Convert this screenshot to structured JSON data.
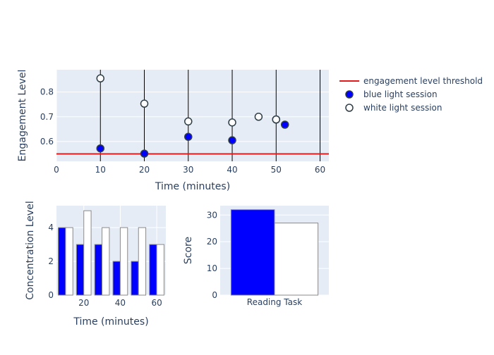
{
  "chart_data": [
    {
      "type": "scatter",
      "xlabel": "Time (minutes)",
      "ylabel": "Engagement Level",
      "xlim": [
        0,
        62
      ],
      "ylim": [
        0.52,
        0.89
      ],
      "x_ticks": [
        0,
        10,
        20,
        30,
        40,
        50,
        60
      ],
      "y_ticks": [
        0.6,
        0.7,
        0.8
      ],
      "vlines": [
        10,
        20,
        30,
        40,
        50,
        60
      ],
      "threshold": {
        "name": "engagement level threshold",
        "value": 0.55,
        "color": "#e31a1c"
      },
      "series": [
        {
          "name": "blue light session",
          "color": "#0000ff",
          "x": [
            10,
            20,
            30,
            40,
            50,
            52
          ],
          "y": [
            0.572,
            0.551,
            0.619,
            0.605,
            0.689,
            0.668
          ]
        },
        {
          "name": "white light session",
          "color": "#ffffff",
          "x": [
            10,
            20,
            30,
            40,
            46,
            50
          ],
          "y": [
            0.855,
            0.753,
            0.681,
            0.677,
            0.7,
            0.689
          ]
        }
      ],
      "legend": "right",
      "grid": true
    },
    {
      "type": "bar",
      "xlabel": "Time (minutes)",
      "ylabel": "Concentration Level",
      "x": [
        10,
        20,
        30,
        40,
        50,
        60
      ],
      "xlim": [
        5,
        65
      ],
      "ylim": [
        0,
        5.3
      ],
      "x_ticks": [
        20,
        40,
        60
      ],
      "y_ticks": [
        0,
        2,
        4
      ],
      "series": [
        {
          "name": "blue light session",
          "color": "#0000ff",
          "values": [
            4,
            3,
            3,
            2,
            2,
            3
          ]
        },
        {
          "name": "white light session",
          "color": "#ffffff",
          "values": [
            4,
            5,
            4,
            4,
            4,
            3
          ]
        }
      ],
      "grid": true
    },
    {
      "type": "bar",
      "ylabel": "Score",
      "categories": [
        "Reading Task"
      ],
      "ylim": [
        0,
        33.5
      ],
      "y_ticks": [
        0,
        10,
        20,
        30
      ],
      "series": [
        {
          "name": "blue light session",
          "color": "#0000ff",
          "values": [
            32
          ]
        },
        {
          "name": "white light session",
          "color": "#ffffff",
          "values": [
            27
          ]
        }
      ],
      "grid": true
    }
  ],
  "colors": {
    "plot_bg": "#e5ecf6",
    "grid": "#ffffff",
    "text": "#2a3f5f",
    "marker_outline": "#2f3e46",
    "bar_outline": "#8a8a8a",
    "vline": "#000000"
  }
}
